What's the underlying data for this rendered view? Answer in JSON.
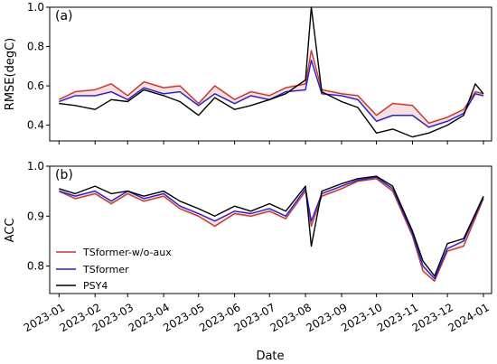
{
  "chart_data": [
    {
      "type": "line",
      "panel_label": "(a)",
      "title": "",
      "xlabel": "",
      "ylabel": "RMSE(degC)",
      "x_axis": "date",
      "x_ticks": [
        "2023-01",
        "2023-02",
        "2023-03",
        "2023-04",
        "2023-05",
        "2023-06",
        "2023-07",
        "2023-08",
        "2023-09",
        "2023-10",
        "2023-11",
        "2023-12",
        "2024-01"
      ],
      "xlim": [
        "2022-12-24",
        "2024-01-08"
      ],
      "ylim": [
        0.32,
        1.0
      ],
      "y_ticks": [
        0.4,
        0.6,
        0.8,
        1.0
      ],
      "y_tick_labels": [
        "0.4",
        "0.6",
        "0.8",
        "1.0"
      ],
      "grid": false,
      "legend": false,
      "x": [
        "2023-01-01",
        "2023-01-15",
        "2023-02-01",
        "2023-02-15",
        "2023-03-01",
        "2023-03-15",
        "2023-04-01",
        "2023-04-15",
        "2023-05-01",
        "2023-05-15",
        "2023-06-01",
        "2023-06-15",
        "2023-07-01",
        "2023-07-15",
        "2023-08-01",
        "2023-08-06",
        "2023-08-15",
        "2023-09-01",
        "2023-09-15",
        "2023-10-01",
        "2023-10-15",
        "2023-11-01",
        "2023-11-15",
        "2023-12-01",
        "2023-12-15",
        "2023-12-25",
        "2024-01-01"
      ],
      "series": [
        {
          "name": "TSformer-w/o-aux",
          "color": "#c0392b",
          "band_color": "#f4c6c6",
          "values": [
            0.53,
            0.57,
            0.58,
            0.61,
            0.55,
            0.62,
            0.59,
            0.6,
            0.51,
            0.6,
            0.53,
            0.57,
            0.55,
            0.59,
            0.61,
            0.78,
            0.58,
            0.56,
            0.55,
            0.45,
            0.51,
            0.5,
            0.41,
            0.44,
            0.48,
            0.57,
            0.56
          ]
        },
        {
          "name": "TSformer",
          "color": "#2020cc",
          "values": [
            0.52,
            0.55,
            0.55,
            0.57,
            0.53,
            0.59,
            0.56,
            0.57,
            0.5,
            0.56,
            0.51,
            0.55,
            0.53,
            0.57,
            0.58,
            0.73,
            0.56,
            0.55,
            0.53,
            0.42,
            0.45,
            0.45,
            0.39,
            0.42,
            0.46,
            0.56,
            0.55
          ]
        },
        {
          "name": "PSY4",
          "color": "#000000",
          "values": [
            0.51,
            0.5,
            0.48,
            0.53,
            0.52,
            0.58,
            0.55,
            0.52,
            0.45,
            0.54,
            0.48,
            0.5,
            0.53,
            0.56,
            0.63,
            1.0,
            0.57,
            0.52,
            0.49,
            0.36,
            0.38,
            0.34,
            0.36,
            0.4,
            0.45,
            0.61,
            0.56
          ]
        }
      ]
    },
    {
      "type": "line",
      "panel_label": "(b)",
      "title": "",
      "xlabel": "Date",
      "ylabel": "ACC",
      "x_axis": "date",
      "x_ticks": [
        "2023-01",
        "2023-02",
        "2023-03",
        "2023-04",
        "2023-05",
        "2023-06",
        "2023-07",
        "2023-08",
        "2023-09",
        "2023-10",
        "2023-11",
        "2023-12",
        "2024-01"
      ],
      "xlim": [
        "2022-12-24",
        "2024-01-08"
      ],
      "ylim": [
        0.745,
        1.0
      ],
      "y_ticks": [
        0.8,
        0.9,
        1.0
      ],
      "y_tick_labels": [
        "0.8",
        "0.9",
        "1.0"
      ],
      "grid": false,
      "legend": true,
      "legend_position": "lower-left",
      "x": [
        "2023-01-01",
        "2023-01-15",
        "2023-02-01",
        "2023-02-15",
        "2023-03-01",
        "2023-03-15",
        "2023-04-01",
        "2023-04-15",
        "2023-05-01",
        "2023-05-15",
        "2023-06-01",
        "2023-06-15",
        "2023-07-01",
        "2023-07-15",
        "2023-08-01",
        "2023-08-06",
        "2023-08-15",
        "2023-09-01",
        "2023-09-15",
        "2023-10-01",
        "2023-10-15",
        "2023-11-01",
        "2023-11-10",
        "2023-11-20",
        "2023-12-01",
        "2023-12-15",
        "2024-01-01"
      ],
      "series": [
        {
          "name": "TSformer-w/o-aux",
          "color": "#c0392b",
          "band_color": "#f4c6c6",
          "values": [
            0.95,
            0.935,
            0.945,
            0.925,
            0.945,
            0.93,
            0.94,
            0.915,
            0.9,
            0.88,
            0.905,
            0.9,
            0.91,
            0.895,
            0.95,
            0.88,
            0.94,
            0.955,
            0.97,
            0.975,
            0.95,
            0.86,
            0.79,
            0.77,
            0.83,
            0.84,
            0.935
          ]
        },
        {
          "name": "TSformer",
          "color": "#2020cc",
          "values": [
            0.95,
            0.94,
            0.95,
            0.93,
            0.95,
            0.935,
            0.945,
            0.92,
            0.905,
            0.89,
            0.91,
            0.905,
            0.915,
            0.9,
            0.955,
            0.89,
            0.945,
            0.96,
            0.972,
            0.978,
            0.955,
            0.865,
            0.8,
            0.775,
            0.835,
            0.85,
            0.938
          ]
        },
        {
          "name": "PSY4",
          "color": "#000000",
          "values": [
            0.955,
            0.945,
            0.96,
            0.945,
            0.95,
            0.94,
            0.95,
            0.93,
            0.915,
            0.9,
            0.92,
            0.91,
            0.925,
            0.91,
            0.96,
            0.84,
            0.95,
            0.965,
            0.975,
            0.98,
            0.96,
            0.87,
            0.81,
            0.78,
            0.845,
            0.855,
            0.94
          ]
        }
      ]
    }
  ]
}
